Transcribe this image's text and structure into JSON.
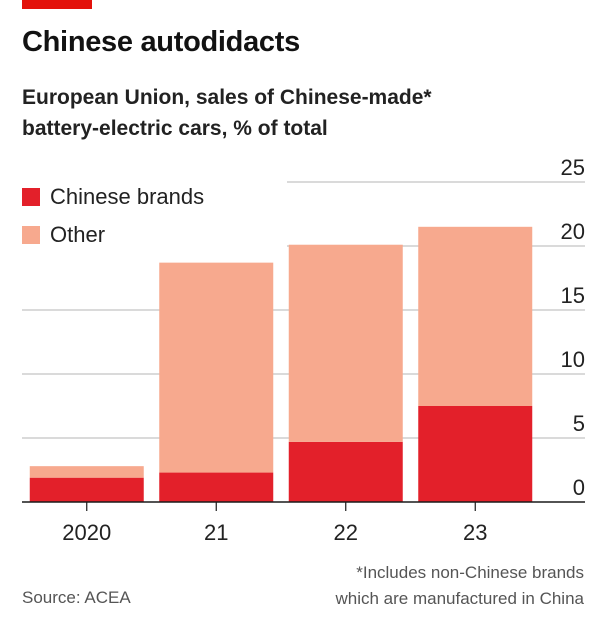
{
  "header": {
    "title": "Chinese autodidacts",
    "subtitle_line1": "European Union, sales of Chinese-made*",
    "subtitle_line2": "battery-electric cars, % of total"
  },
  "legend": {
    "items": [
      {
        "label": "Chinese brands"
      },
      {
        "label": "Other"
      }
    ]
  },
  "footer": {
    "note_line1": "*Includes non-Chinese brands",
    "note_line2": "which are manufactured in China",
    "source": "Source: ACEA"
  },
  "colors": {
    "accent": "#e3120b",
    "chinese_brands": "#e3202a",
    "other": "#f7a98e",
    "grid": "#b5b5b5",
    "axis": "#1a1a1a"
  },
  "chart_data": {
    "type": "bar",
    "stacked": true,
    "categories": [
      "2020",
      "21",
      "22",
      "23"
    ],
    "series": [
      {
        "name": "Chinese brands",
        "values": [
          1.9,
          2.3,
          4.7,
          7.5
        ]
      },
      {
        "name": "Other",
        "values": [
          0.9,
          16.4,
          15.4,
          14.0
        ]
      }
    ],
    "ylim": [
      0,
      25
    ],
    "yticks": [
      0,
      5,
      10,
      15,
      20,
      25
    ],
    "y_axis_side": "right",
    "grid": true,
    "legend_position": "top-left"
  }
}
